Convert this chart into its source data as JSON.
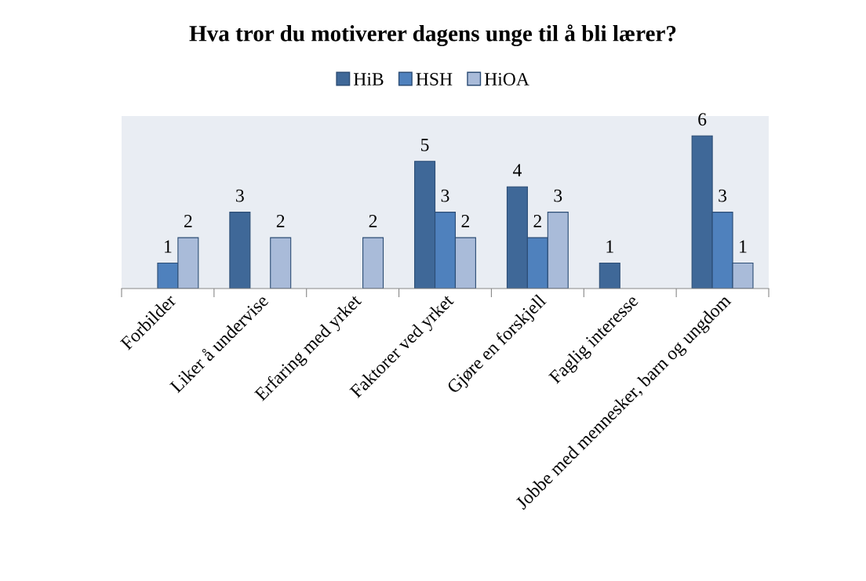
{
  "chart_data": {
    "type": "bar",
    "title": "Hva tror du motiverer dagens unge til å bli lærer?",
    "categories": [
      "Forbilder",
      "Liker å undervise",
      "Erfaring med yrket",
      "Faktorer ved yrket",
      "Gjøre en forskjell",
      "Faglig interesse",
      "Jobbe med mennesker, barn og ungdom"
    ],
    "series": [
      {
        "name": "HiB",
        "color": "#3f6898",
        "values": [
          null,
          3,
          null,
          5,
          4,
          1,
          6
        ]
      },
      {
        "name": "HSH",
        "color": "#4f81bd",
        "values": [
          1,
          null,
          null,
          3,
          2,
          null,
          3
        ]
      },
      {
        "name": "HiOA",
        "color": "#a9bbd9",
        "values": [
          2,
          2,
          2,
          2,
          3,
          null,
          1
        ]
      }
    ],
    "data_labels": true,
    "legend": "top",
    "grid": false
  }
}
